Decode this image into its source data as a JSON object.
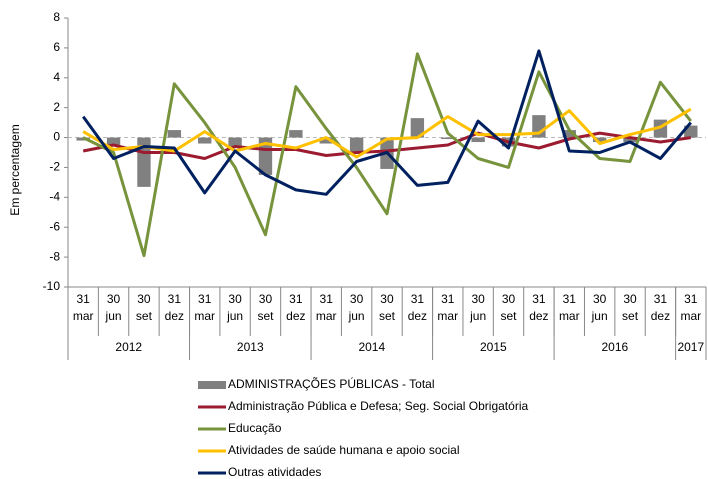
{
  "chart_data": {
    "type": "line",
    "y_label": "Em percentagem",
    "categories": [
      "31 mar",
      "30 jun",
      "30 set",
      "31 dez",
      "31 mar",
      "30 jun",
      "30 set",
      "31 dez",
      "31 mar",
      "30 jun",
      "30 set",
      "31 dez",
      "31 mar",
      "30 jun",
      "30 set",
      "31 dez",
      "31 mar",
      "30 jun",
      "30 set",
      "31 dez",
      "31 mar"
    ],
    "x_groups": [
      {
        "label": "2012",
        "count": 4
      },
      {
        "label": "2013",
        "count": 4
      },
      {
        "label": "2014",
        "count": 4
      },
      {
        "label": "2015",
        "count": 4
      },
      {
        "label": "2016",
        "count": 4
      },
      {
        "label": "2017",
        "count": 1
      }
    ],
    "ylim": [
      -10,
      8
    ],
    "yticks": [
      -10,
      -8,
      -6,
      -4,
      -2,
      0,
      2,
      4,
      6,
      8
    ],
    "series": [
      {
        "name": "ADMINISTRAÇÕES PÚBLICAS - Total",
        "type": "bar",
        "color": "#808080",
        "values": [
          -0.2,
          -0.5,
          -3.3,
          0.5,
          -0.4,
          -0.7,
          -2.5,
          0.5,
          -0.4,
          -1.1,
          -2.1,
          1.3,
          -0.1,
          -0.3,
          -0.6,
          1.5,
          0.5,
          -0.3,
          -0.3,
          1.2,
          0.8
        ]
      },
      {
        "name": "Administração Pública e Defesa; Seg. Social Obrigatória",
        "color": "#9b1b30",
        "values": [
          -0.9,
          -0.5,
          -1.0,
          -1.0,
          -1.4,
          -0.6,
          -0.8,
          -0.8,
          -1.2,
          -1.0,
          -0.9,
          -0.7,
          -0.5,
          0.3,
          -0.3,
          -0.7,
          -0.1,
          0.3,
          0.0,
          -0.3,
          0.0
        ]
      },
      {
        "name": "Educação",
        "color": "#77933c",
        "values": [
          0.0,
          -1.0,
          -7.9,
          3.6,
          1.0,
          -2.0,
          -6.5,
          3.4,
          0.6,
          -2.0,
          -5.1,
          5.6,
          0.3,
          -1.4,
          -2.0,
          4.4,
          0.5,
          -1.4,
          -1.6,
          3.7,
          1.1
        ]
      },
      {
        "name": "Atividades de saúde humana e apoio social",
        "color": "#ffc000",
        "values": [
          0.4,
          -0.8,
          -0.6,
          -0.9,
          0.4,
          -0.9,
          -0.4,
          -0.7,
          0.0,
          -1.3,
          -0.1,
          0.0,
          1.4,
          0.2,
          0.2,
          0.3,
          1.8,
          -0.4,
          0.2,
          0.7,
          1.9
        ]
      },
      {
        "name": "Outras atividades",
        "color": "#002060",
        "values": [
          1.4,
          -1.4,
          -0.6,
          -0.7,
          -3.7,
          -0.9,
          -2.5,
          -3.5,
          -3.8,
          -1.6,
          -1.0,
          -3.2,
          -3.0,
          1.1,
          -0.7,
          5.8,
          -0.9,
          -1.0,
          -0.3,
          -1.4,
          1.0
        ]
      }
    ]
  }
}
